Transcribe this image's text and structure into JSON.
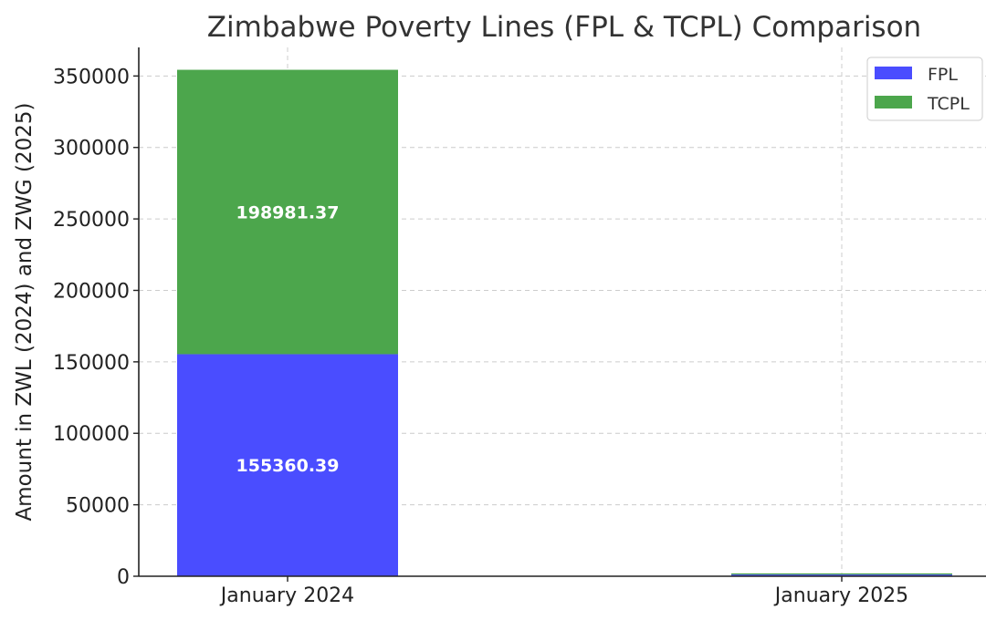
{
  "chart_data": {
    "type": "bar",
    "stacked": true,
    "title": "Zimbabwe Poverty Lines (FPL & TCPL) Comparison",
    "xlabel": "",
    "ylabel": "Amount in ZWL (2024) and ZWG (2025)",
    "categories": [
      "January 2024",
      "January 2025"
    ],
    "series": [
      {
        "name": "FPL",
        "color": "#4a4dff",
        "values": [
          155360.39,
          1200
        ],
        "labels": [
          "155360.39",
          ""
        ]
      },
      {
        "name": "TCPL",
        "color": "#4ca64c",
        "values": [
          198981.37,
          800
        ],
        "labels": [
          "198981.37",
          ""
        ]
      }
    ],
    "ylim": [
      0,
      370000
    ],
    "yticks": [
      0,
      50000,
      100000,
      150000,
      200000,
      250000,
      300000,
      350000
    ],
    "grid": true,
    "legend_position": "top-right"
  }
}
